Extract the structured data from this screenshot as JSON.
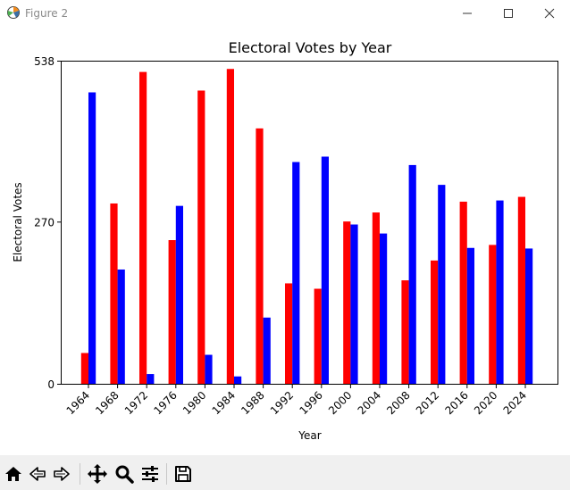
{
  "window": {
    "title": "Figure 2",
    "icons": {
      "app": "matplotlib-figure-icon",
      "minimize": "minimize-icon",
      "maximize": "maximize-icon",
      "close": "close-icon"
    }
  },
  "toolbar": {
    "buttons": [
      {
        "id": "home",
        "icon": "home-icon"
      },
      {
        "id": "back",
        "icon": "back-arrow-icon"
      },
      {
        "id": "forward",
        "icon": "forward-arrow-icon"
      },
      {
        "id": "pan",
        "icon": "pan-move-icon"
      },
      {
        "id": "zoom",
        "icon": "zoom-magnifier-icon"
      },
      {
        "id": "configure",
        "icon": "configure-subplots-icon"
      },
      {
        "id": "save",
        "icon": "save-floppy-icon"
      }
    ]
  },
  "colors": {
    "series_a": "#ff0000",
    "series_b": "#0000ff"
  },
  "chart_data": {
    "type": "bar",
    "title": "Electoral Votes by Year",
    "xlabel": "Year",
    "ylabel": "Electoral Votes",
    "categories": [
      "1964",
      "1968",
      "1972",
      "1976",
      "1980",
      "1984",
      "1988",
      "1992",
      "1996",
      "2000",
      "2004",
      "2008",
      "2012",
      "2016",
      "2020",
      "2024"
    ],
    "series": [
      {
        "color": "#ff0000",
        "values": [
          52,
          301,
          520,
          240,
          489,
          525,
          426,
          168,
          159,
          271,
          286,
          173,
          206,
          304,
          232,
          312
        ]
      },
      {
        "color": "#0000ff",
        "values": [
          486,
          191,
          17,
          297,
          49,
          13,
          111,
          370,
          379,
          266,
          251,
          365,
          332,
          227,
          306,
          226
        ]
      }
    ],
    "yticks": [
      0,
      270,
      538
    ],
    "ylim": [
      0,
      538
    ],
    "grid": false,
    "legend": "none"
  }
}
